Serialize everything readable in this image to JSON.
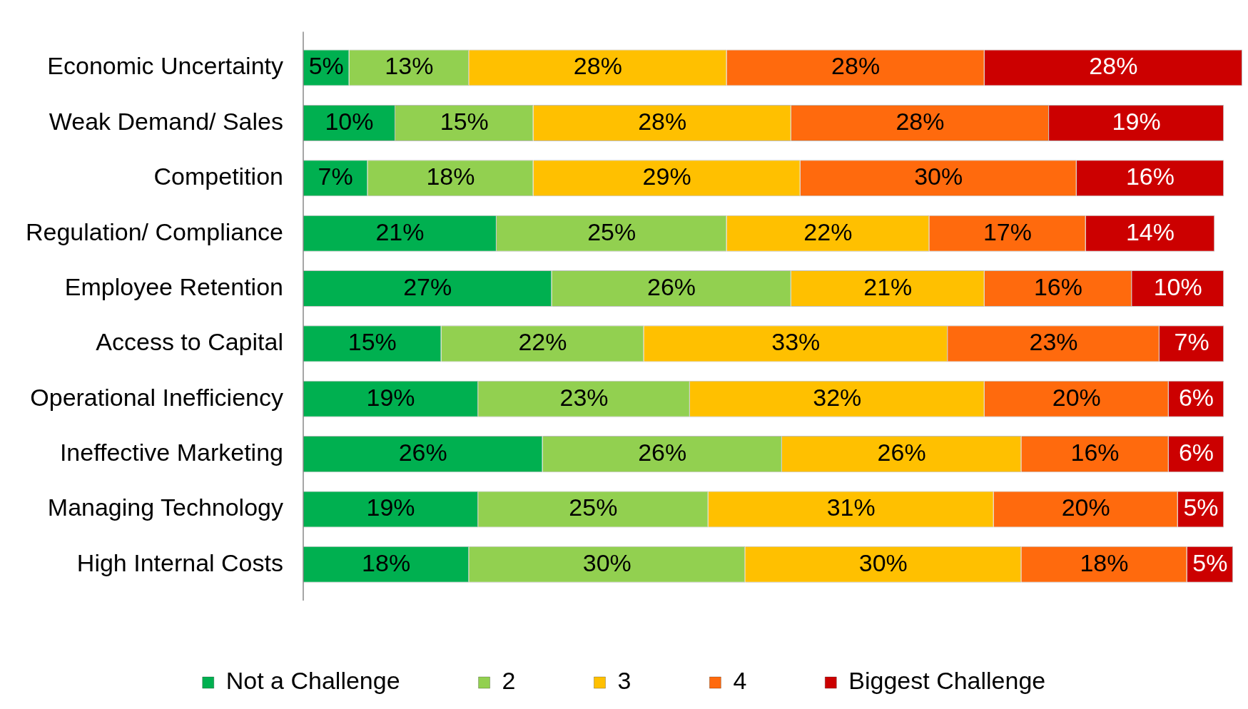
{
  "chart_data": {
    "type": "bar",
    "orientation": "horizontal",
    "stacked": true,
    "grid": false,
    "legend": "bottom",
    "categories": [
      "Economic Uncertainty",
      "Weak Demand/ Sales",
      "Competition",
      "Regulation/ Compliance",
      "Employee Retention",
      "Access to Capital",
      "Operational Inefficiency",
      "Ineffective Marketing",
      "Managing Technology",
      "High Internal Costs"
    ],
    "series": [
      {
        "name": "Not a Challenge",
        "color": "#00b050",
        "values": [
          5,
          10,
          7,
          21,
          27,
          15,
          19,
          26,
          19,
          18
        ],
        "value_labels": [
          "5%",
          "10%",
          "7%",
          "21%",
          "27%",
          "15%",
          "19%",
          "26%",
          "19%",
          "18%"
        ]
      },
      {
        "name": "2",
        "color": "#92d050",
        "values": [
          13,
          15,
          18,
          25,
          26,
          22,
          23,
          26,
          25,
          30
        ],
        "value_labels": [
          "13%",
          "15%",
          "18%",
          "25%",
          "26%",
          "22%",
          "23%",
          "26%",
          "25%",
          "30%"
        ]
      },
      {
        "name": "3",
        "color": "#ffc000",
        "values": [
          28,
          28,
          29,
          22,
          21,
          33,
          32,
          26,
          31,
          30
        ],
        "value_labels": [
          "28%",
          "28%",
          "29%",
          "22%",
          "21%",
          "33%",
          "32%",
          "26%",
          "31%",
          "30%"
        ]
      },
      {
        "name": "4",
        "color": "#ff6a0d",
        "values": [
          28,
          28,
          30,
          17,
          16,
          23,
          20,
          16,
          20,
          18
        ],
        "value_labels": [
          "28%",
          "28%",
          "30%",
          "17%",
          "16%",
          "23%",
          "20%",
          "16%",
          "20%",
          "18%"
        ]
      },
      {
        "name": "Biggest Challenge",
        "color": "#cc0000",
        "values": [
          28,
          19,
          16,
          14,
          10,
          7,
          6,
          6,
          5,
          5
        ],
        "value_labels": [
          "28%",
          "19%",
          "16%",
          "14%",
          "10%",
          "7%",
          "6%",
          "6%",
          "5%",
          "5%"
        ]
      }
    ]
  }
}
